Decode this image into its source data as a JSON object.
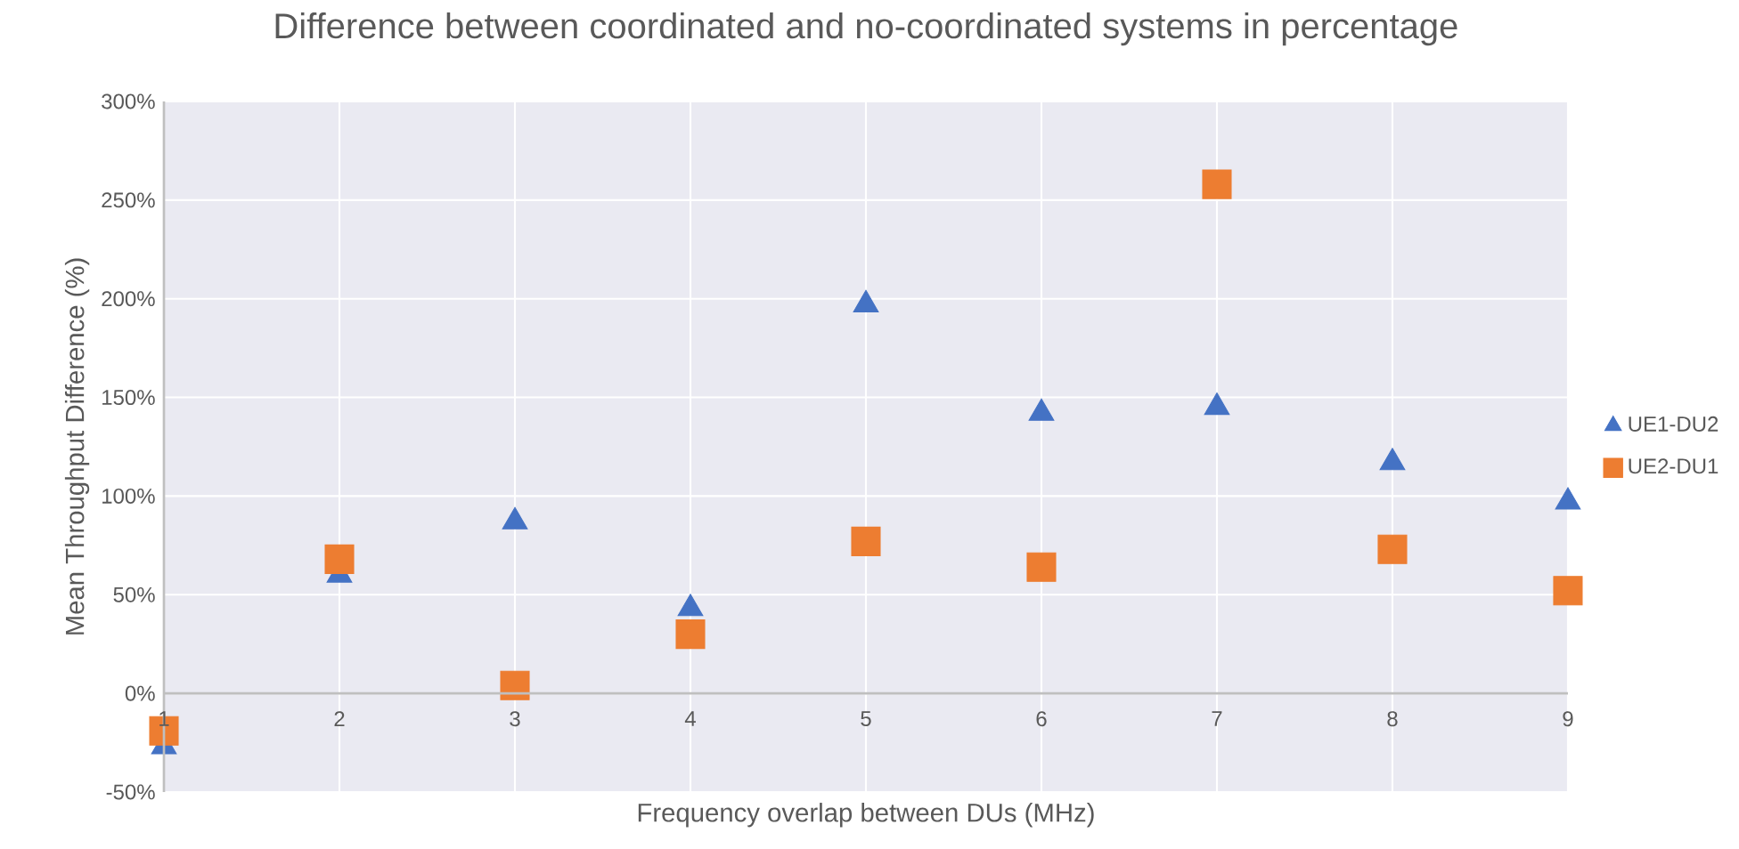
{
  "chart_data": {
    "type": "scatter",
    "title": "Difference between coordinated and no-coordinated systems in percentage",
    "xlabel": "Frequency overlap between DUs (MHz)",
    "ylabel": "Mean Throughput Difference (%)",
    "x": [
      1,
      2,
      3,
      4,
      5,
      6,
      7,
      8,
      9
    ],
    "series": [
      {
        "name": "UE1-DU2",
        "color": "#4472c4",
        "marker": "triangle",
        "values": [
          -27,
          60,
          87,
          43,
          197,
          142,
          145,
          117,
          97
        ]
      },
      {
        "name": "UE2-DU1",
        "color": "#ed7d31",
        "marker": "square",
        "values": [
          -19,
          68,
          4,
          30,
          77,
          64,
          258,
          73,
          52
        ]
      }
    ],
    "xlim": [
      1,
      9
    ],
    "xticks": [
      1,
      2,
      3,
      4,
      5,
      6,
      7,
      8,
      9
    ],
    "ylim": [
      -50,
      300
    ],
    "yticks": [
      {
        "value": -50,
        "label": "-50%"
      },
      {
        "value": 0,
        "label": "0%"
      },
      {
        "value": 50,
        "label": "50%"
      },
      {
        "value": 100,
        "label": "100%"
      },
      {
        "value": 150,
        "label": "150%"
      },
      {
        "value": 200,
        "label": "200%"
      },
      {
        "value": 250,
        "label": "250%"
      },
      {
        "value": 300,
        "label": "300%"
      }
    ],
    "grid": true,
    "legend": "right"
  }
}
